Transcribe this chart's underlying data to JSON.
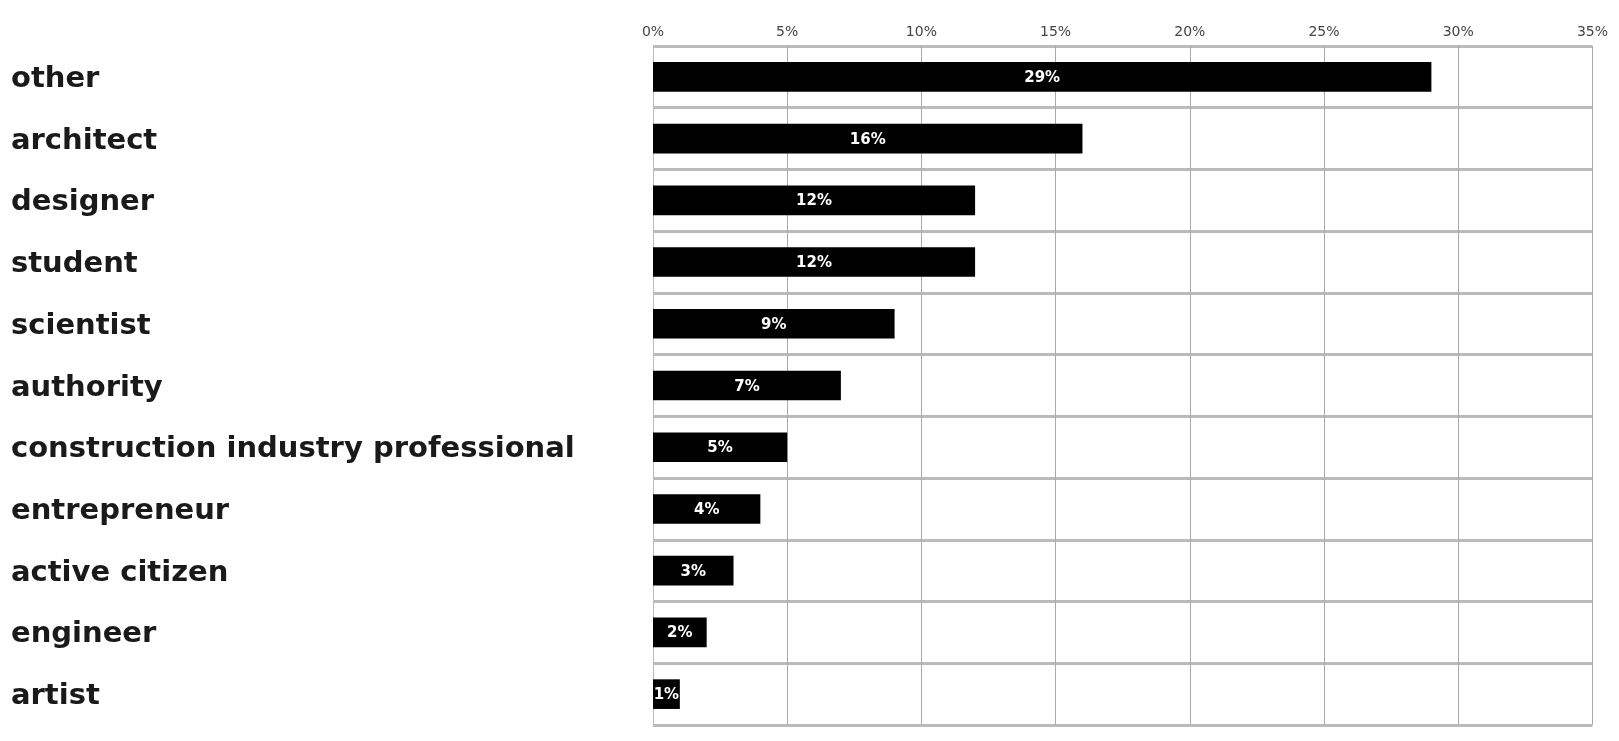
{
  "chart_data": {
    "type": "bar",
    "orientation": "horizontal",
    "categories": [
      "other",
      "architect",
      "designer",
      "student",
      "scientist",
      "authority",
      "construction industry professional",
      "entrepreneur",
      "active citizen",
      "engineer",
      "artist"
    ],
    "values": [
      29,
      16,
      12,
      12,
      9,
      7,
      5,
      4,
      3,
      2,
      1
    ],
    "value_labels": [
      "29%",
      "16%",
      "12%",
      "12%",
      "9%",
      "7%",
      "5%",
      "4%",
      "3%",
      "2%",
      "1%"
    ],
    "color": "#000000",
    "xlim": [
      0,
      35
    ],
    "xticks": [
      {
        "value": 0,
        "label": "0%"
      },
      {
        "value": 5,
        "label": "5%"
      },
      {
        "value": 10,
        "label": "10%"
      },
      {
        "value": 15,
        "label": "15%"
      },
      {
        "value": 20,
        "label": "20%"
      },
      {
        "value": 25,
        "label": "25%"
      },
      {
        "value": 30,
        "label": "30%"
      },
      {
        "value": 35,
        "label": "35%"
      }
    ],
    "grid": true
  }
}
